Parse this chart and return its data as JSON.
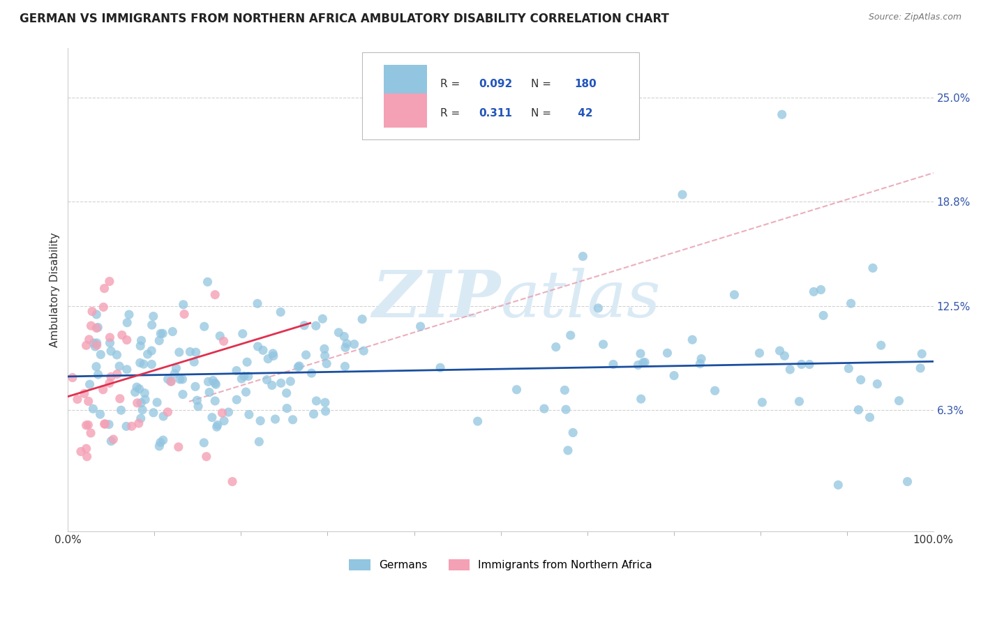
{
  "title": "GERMAN VS IMMIGRANTS FROM NORTHERN AFRICA AMBULATORY DISABILITY CORRELATION CHART",
  "source": "Source: ZipAtlas.com",
  "ylabel": "Ambulatory Disability",
  "xlim": [
    0.0,
    1.0
  ],
  "ylim": [
    -0.01,
    0.28
  ],
  "xtick_positions": [
    0.0,
    1.0
  ],
  "xtick_labels": [
    "0.0%",
    "100.0%"
  ],
  "ytick_values": [
    0.063,
    0.125,
    0.188,
    0.25
  ],
  "ytick_labels": [
    "6.3%",
    "12.5%",
    "18.8%",
    "25.0%"
  ],
  "blue_color": "#92c5e0",
  "pink_color": "#f4a0b5",
  "line_blue": "#1a4e9e",
  "line_pink": "#e0304e",
  "line_dash_color": "#e8a0b0",
  "watermark_color": "#daeaf5",
  "background_color": "#ffffff",
  "grid_color": "#cccccc",
  "title_color": "#222222",
  "tick_color": "#3355aa",
  "blue_line_y0": 0.083,
  "blue_line_y1": 0.092,
  "pink_line_x0": 0.0,
  "pink_line_x1": 0.28,
  "pink_line_y0": 0.071,
  "pink_line_y1": 0.115,
  "dash_line_x0": 0.14,
  "dash_line_x1": 1.0,
  "dash_line_y0": 0.068,
  "dash_line_y1": 0.205
}
